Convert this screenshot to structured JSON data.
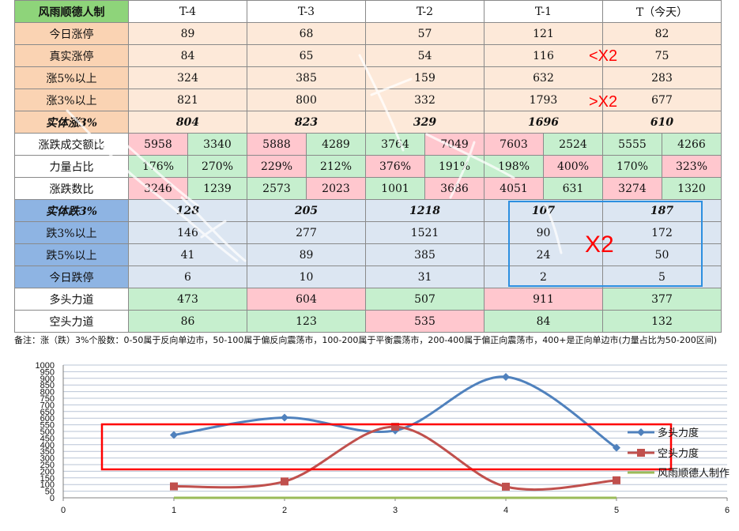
{
  "table": {
    "corner": "风雨顺德人制",
    "columns": [
      "T-4",
      "T-3",
      "T-2",
      "T-1",
      "T（今天）"
    ],
    "rows": {
      "limit_up": {
        "label": "今日涨停",
        "values": [
          "89",
          "68",
          "57",
          "121",
          "82"
        ]
      },
      "real_limit_up": {
        "label": "真实涨停",
        "values": [
          "84",
          "65",
          "54",
          "116",
          "75"
        ]
      },
      "up5": {
        "label": "涨5%以上",
        "values": [
          "324",
          "385",
          "159",
          "632",
          "283"
        ]
      },
      "up3": {
        "label": "涨3%以上",
        "values": [
          "821",
          "800",
          "332",
          "1793",
          "677"
        ]
      },
      "solid_up3": {
        "label": "实体涨3%",
        "values": [
          "804",
          "823",
          "329",
          "1696",
          "610"
        ]
      },
      "turnover_ratio": {
        "label": "涨跌成交额比",
        "values": [
          "5958",
          "3340",
          "5888",
          "4289",
          "3764",
          "7049",
          "7603",
          "2524",
          "5555",
          "4266"
        ]
      },
      "power_ratio": {
        "label": "力量占比",
        "values": [
          "176%",
          "270%",
          "229%",
          "212%",
          "376%",
          "191%",
          "198%",
          "400%",
          "170%",
          "323%"
        ]
      },
      "count_ratio": {
        "label": "涨跌数比",
        "values": [
          "3246",
          "1239",
          "2573",
          "2023",
          "1001",
          "3686",
          "4051",
          "631",
          "3274",
          "1320"
        ]
      },
      "solid_down3": {
        "label": "实体跌3%",
        "values": [
          "128",
          "205",
          "1218",
          "107",
          "187"
        ]
      },
      "down3": {
        "label": "跌3%以上",
        "values": [
          "146",
          "277",
          "1521",
          "90",
          "172"
        ]
      },
      "down5": {
        "label": "跌5%以上",
        "values": [
          "41",
          "89",
          "385",
          "24",
          "50"
        ]
      },
      "limit_down": {
        "label": "今日跌停",
        "values": [
          "6",
          "10",
          "31",
          "2",
          "5"
        ]
      },
      "bull_power": {
        "label": "多头力道",
        "values": [
          "473",
          "604",
          "507",
          "911",
          "377"
        ]
      },
      "bear_power": {
        "label": "空头力道",
        "values": [
          "86",
          "123",
          "535",
          "84",
          "132"
        ]
      }
    },
    "note": "备注：涨（跌）3%个股数：0-50属于反向单边市，50-100属于偏反向震荡市，100-200属于平衡震荡市，200-400属于偏正向震荡市，400+是正向单边市(力量占比为50-200区间)"
  },
  "annotations": {
    "lt_x2": "<X2",
    "gt_x2": ">X2",
    "x2": "X2"
  },
  "colors": {
    "bull_line": "#4f81bd",
    "bear_line": "#c0504d",
    "author_line": "#9bbb59",
    "cell_green": "#c6efce",
    "cell_pink": "#ffc7ce",
    "highlight_red": "#ff0000",
    "highlight_blue": "#2d8fe0"
  },
  "chart_data": {
    "type": "line",
    "x": [
      1,
      2,
      3,
      4,
      5
    ],
    "series": [
      {
        "name": "多头力度",
        "values": [
          473,
          604,
          507,
          911,
          377
        ],
        "color": "#4f81bd",
        "marker": "diamond"
      },
      {
        "name": "空头力度",
        "values": [
          86,
          123,
          535,
          84,
          132
        ],
        "color": "#c0504d",
        "marker": "square"
      },
      {
        "name": "风雨顺德人制作",
        "values": [
          0,
          0,
          0,
          0,
          0
        ],
        "color": "#9bbb59",
        "marker": "none"
      }
    ],
    "xlim": [
      0,
      6
    ],
    "ylim": [
      0,
      1000
    ],
    "xticks": [
      0,
      1,
      2,
      3,
      4,
      5,
      6
    ],
    "yticks": [
      0,
      50,
      100,
      150,
      200,
      250,
      300,
      350,
      400,
      450,
      500,
      550,
      600,
      650,
      700,
      750,
      800,
      850,
      900,
      950,
      1000
    ],
    "smooth": true,
    "grid": "horizontal",
    "legend": "right"
  }
}
